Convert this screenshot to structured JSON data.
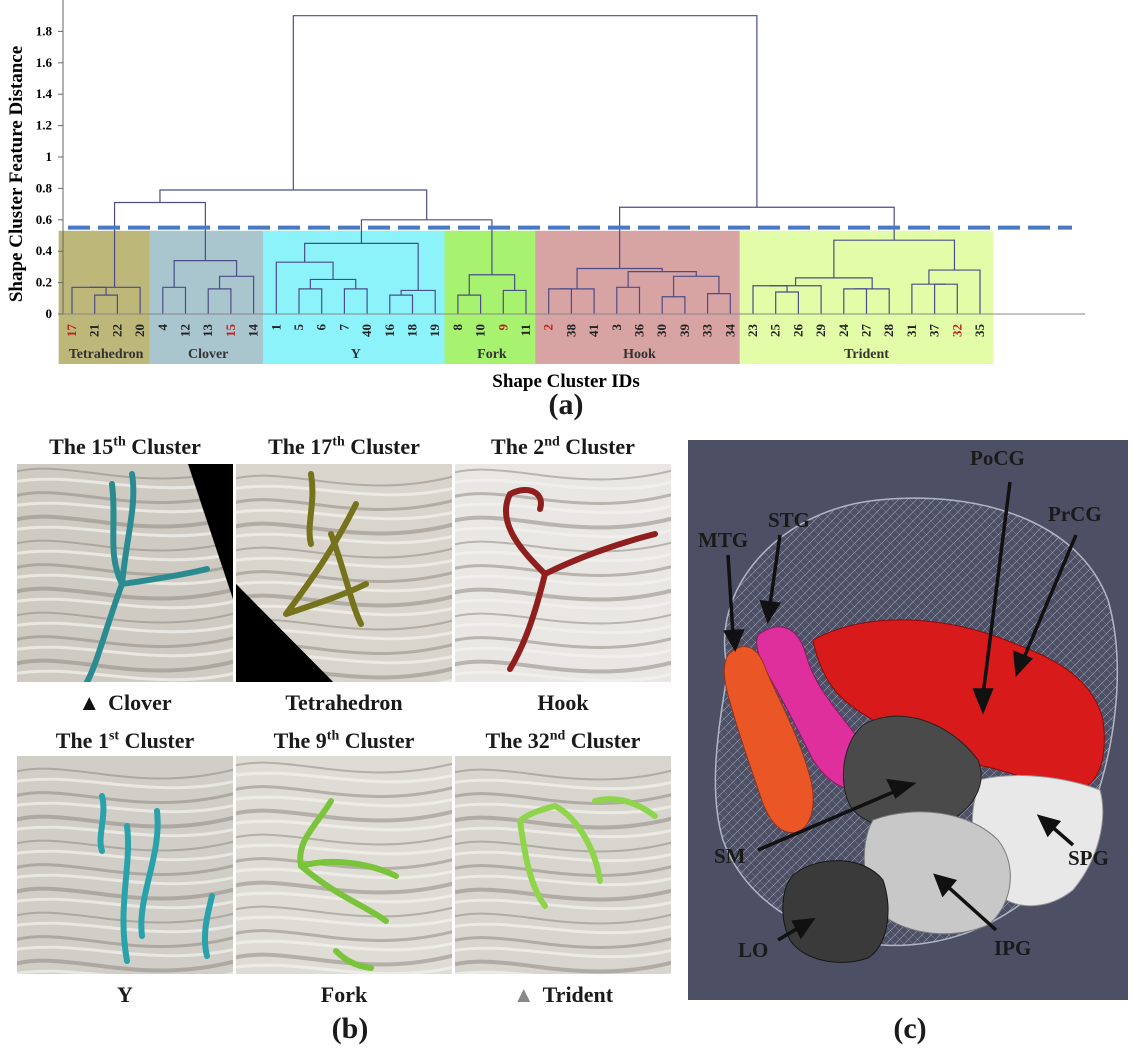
{
  "panel_a": {
    "chart_data": {
      "type": "dendrogram",
      "ylabel": "Shape Cluster Feature Distance",
      "xlabel": "Shape Cluster IDs",
      "ylim": [
        0,
        2.0
      ],
      "yticks": [
        "0",
        "0.2",
        "0.4",
        "0.6",
        "0.8",
        "1",
        "1.2",
        "1.4",
        "1.6",
        "1.8"
      ],
      "cut_height": 0.55,
      "leaves": [
        "17",
        "21",
        "22",
        "20",
        "4",
        "12",
        "13",
        "15",
        "14",
        "1",
        "5",
        "6",
        "7",
        "40",
        "16",
        "18",
        "19",
        "8",
        "10",
        "9",
        "11",
        "2",
        "38",
        "41",
        "3",
        "36",
        "30",
        "39",
        "33",
        "34",
        "23",
        "25",
        "26",
        "29",
        "24",
        "27",
        "28",
        "31",
        "37",
        "32",
        "35"
      ],
      "highlighted_leaves": [
        "17",
        "15",
        "9",
        "2",
        "32"
      ],
      "groups": [
        {
          "name": "Tetrahedron",
          "leaves": [
            "17",
            "21",
            "22",
            "20"
          ],
          "color": "#bdb77a"
        },
        {
          "name": "Clover",
          "leaves": [
            "4",
            "12",
            "13",
            "15",
            "14"
          ],
          "color": "#a9c6cf"
        },
        {
          "name": "Y",
          "leaves": [
            "1",
            "5",
            "6",
            "7",
            "40",
            "16",
            "18",
            "19"
          ],
          "color": "#8df3fb"
        },
        {
          "name": "Fork",
          "leaves": [
            "8",
            "10",
            "9",
            "11"
          ],
          "color": "#a7f26f"
        },
        {
          "name": "Hook",
          "leaves": [
            "2",
            "38",
            "41",
            "3",
            "36",
            "30",
            "39",
            "33",
            "34"
          ],
          "color": "#d7a3a3"
        },
        {
          "name": "Trident",
          "leaves": [
            "23",
            "25",
            "26",
            "29",
            "24",
            "27",
            "28",
            "31",
            "37",
            "32",
            "35"
          ],
          "color": "#e3fca8"
        }
      ]
    },
    "panel_label": "(a)"
  },
  "panel_b": {
    "panel_label": "(b)",
    "tiles": [
      {
        "title_pre": "The 15",
        "title_sup": "th",
        "title_post": " Cluster",
        "caption": "Clover",
        "marker": "▲",
        "marker_color": "#111111",
        "fiber_color": "#2a8c91"
      },
      {
        "title_pre": "The 17",
        "title_sup": "th",
        "title_post": " Cluster",
        "caption": "Tetrahedron",
        "marker": "",
        "marker_color": "",
        "fiber_color": "#77731c"
      },
      {
        "title_pre": "The 2",
        "title_sup": "nd",
        "title_post": " Cluster",
        "caption": "Hook",
        "marker": "",
        "marker_color": "",
        "fiber_color": "#8f1f1f"
      },
      {
        "title_pre": "The 1",
        "title_sup": "st",
        "title_post": " Cluster",
        "caption": "Y",
        "marker": "",
        "marker_color": "",
        "fiber_color": "#2aa2ab"
      },
      {
        "title_pre": "The 9",
        "title_sup": "th",
        "title_post": " Cluster",
        "caption": "Fork",
        "marker": "",
        "marker_color": "",
        "fiber_color": "#79c43a"
      },
      {
        "title_pre": "The 32",
        "title_sup": "nd",
        "title_post": " Cluster",
        "caption": "Trident",
        "marker": "▲",
        "marker_color": "#8a8a8a",
        "fiber_color": "#8fd54c"
      }
    ]
  },
  "panel_c": {
    "panel_label": "(c)",
    "regions": [
      {
        "label": "PoCG",
        "color": "#d81a1a"
      },
      {
        "label": "PrCG",
        "color": "#d81a1a"
      },
      {
        "label": "STG",
        "color": "#de2f9d"
      },
      {
        "label": "MTG",
        "color": "#ea5626"
      },
      {
        "label": "SM",
        "color": "#4a4a4a"
      },
      {
        "label": "SPG",
        "color": "#e8e8e8"
      },
      {
        "label": "IPG",
        "color": "#c8c8c8"
      },
      {
        "label": "LO",
        "color": "#3a3a3a"
      }
    ]
  }
}
